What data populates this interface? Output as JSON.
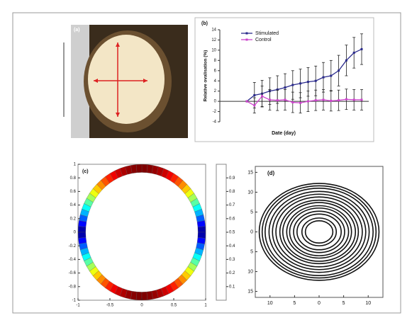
{
  "photo": {
    "label": "(a)"
  },
  "chart_data": [
    {
      "type": "line",
      "title": "(b)",
      "ylabel": "Relative ovalisation (%)",
      "xlabel": "Date (day)",
      "categories": [
        null,
        null,
        null,
        null,
        null,
        null,
        null,
        null,
        null,
        null,
        null,
        null,
        null,
        null,
        null,
        null
      ],
      "series": [
        {
          "name": "Stimulated",
          "color": "#2b2b8c",
          "values": [
            0,
            1.2,
            1.5,
            2,
            2.3,
            2.7,
            3.2,
            3.5,
            3.8,
            4,
            4.7,
            5,
            6,
            8,
            9.5,
            10.2
          ],
          "errors": [
            0,
            2.5,
            2.6,
            2.6,
            2.7,
            2.7,
            2.8,
            2.8,
            2.8,
            2.9,
            2.9,
            3,
            3,
            3,
            3,
            3
          ]
        },
        {
          "name": "Control",
          "color": "#cc44cc",
          "values": [
            0,
            -0.8,
            1,
            0.3,
            0.2,
            0.3,
            -0.2,
            -0.3,
            0,
            0.2,
            0.3,
            0.1,
            0.2,
            0.4,
            0.3,
            0.3
          ],
          "errors": [
            0,
            1.5,
            2,
            2,
            2,
            2,
            2,
            2,
            2,
            2,
            2,
            2,
            2,
            2,
            2,
            2
          ]
        }
      ],
      "ylim": [
        -4,
        14
      ],
      "yticks": [
        -4,
        -2,
        0,
        2,
        4,
        6,
        8,
        10,
        12,
        14
      ],
      "legend": "upper-left"
    },
    {
      "type": "ring",
      "title": "(c)",
      "inner_radius": 0.88,
      "outer_radius": 1,
      "xlim": [
        -1,
        1
      ],
      "ylim": [
        -1,
        1
      ],
      "xticks": [
        -1,
        -0.5,
        0,
        0.5,
        1
      ],
      "yticks": [
        -1,
        -0.8,
        -0.6,
        -0.4,
        -0.2,
        0,
        0.2,
        0.4,
        0.6,
        0.8,
        1
      ],
      "colorbar": {
        "lim": [
          0,
          1
        ],
        "ticks": [
          0.1,
          0.2,
          0.3,
          0.4,
          0.5,
          0.6,
          0.7,
          0.8,
          0.9
        ]
      }
    },
    {
      "type": "circles",
      "title": "(d)",
      "radii": [
        2.8,
        3.5,
        4.5,
        5.2,
        6,
        6.6,
        7.4,
        8,
        8.8,
        9.5,
        10.2,
        11,
        11.6,
        12.2
      ],
      "xlim": [
        -13,
        13
      ],
      "ylim": [
        -16.5,
        16.5
      ],
      "xticks": [
        {
          "value": -10,
          "label": "10"
        },
        {
          "value": -5,
          "label": "5"
        },
        0,
        5,
        10
      ],
      "yticks": [
        {
          "value": -15,
          "label": "15"
        },
        {
          "value": -10,
          "label": "10"
        },
        {
          "value": -5,
          "label": "5"
        },
        0,
        5,
        10,
        15
      ]
    }
  ]
}
